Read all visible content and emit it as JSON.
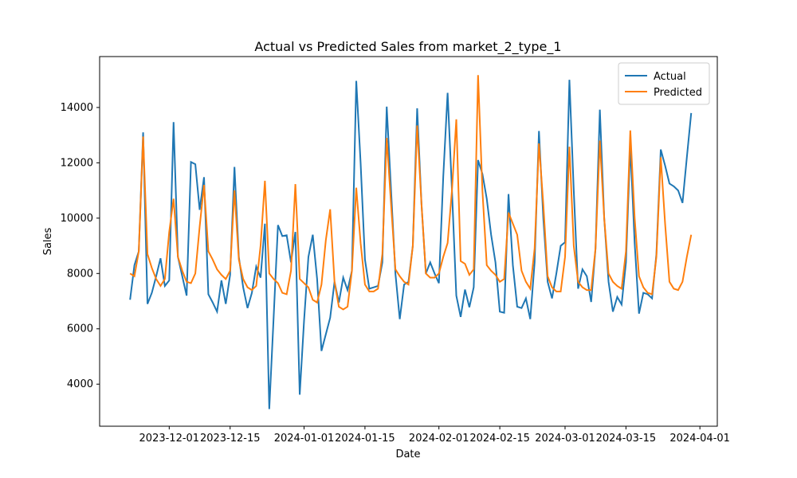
{
  "chart_data": {
    "type": "line",
    "title": "Actual vs Predicted Sales from market_2_type_1",
    "xlabel": "Date",
    "ylabel": "Sales",
    "x": [
      "2023-11-22",
      "2023-11-23",
      "2023-11-24",
      "2023-11-25",
      "2023-11-26",
      "2023-11-27",
      "2023-11-28",
      "2023-11-29",
      "2023-11-30",
      "2023-12-01",
      "2023-12-02",
      "2023-12-03",
      "2023-12-04",
      "2023-12-05",
      "2023-12-06",
      "2023-12-07",
      "2023-12-08",
      "2023-12-09",
      "2023-12-10",
      "2023-12-11",
      "2023-12-12",
      "2023-12-13",
      "2023-12-14",
      "2023-12-15",
      "2023-12-16",
      "2023-12-17",
      "2023-12-18",
      "2023-12-19",
      "2023-12-20",
      "2023-12-21",
      "2023-12-22",
      "2023-12-23",
      "2023-12-24",
      "2023-12-25",
      "2023-12-26",
      "2023-12-27",
      "2023-12-28",
      "2023-12-29",
      "2023-12-30",
      "2023-12-31",
      "2024-01-01",
      "2024-01-02",
      "2024-01-03",
      "2024-01-04",
      "2024-01-05",
      "2024-01-06",
      "2024-01-07",
      "2024-01-08",
      "2024-01-09",
      "2024-01-10",
      "2024-01-11",
      "2024-01-12",
      "2024-01-13",
      "2024-01-14",
      "2024-01-15",
      "2024-01-16",
      "2024-01-17",
      "2024-01-18",
      "2024-01-19",
      "2024-01-20",
      "2024-01-21",
      "2024-01-22",
      "2024-01-23",
      "2024-01-24",
      "2024-01-25",
      "2024-01-26",
      "2024-01-27",
      "2024-01-28",
      "2024-01-29",
      "2024-01-30",
      "2024-01-31",
      "2024-02-01",
      "2024-02-02",
      "2024-02-03",
      "2024-02-04",
      "2024-02-05",
      "2024-02-06",
      "2024-02-07",
      "2024-02-08",
      "2024-02-09",
      "2024-02-10",
      "2024-02-11",
      "2024-02-12",
      "2024-02-13",
      "2024-02-14",
      "2024-02-15",
      "2024-02-16",
      "2024-02-17",
      "2024-02-18",
      "2024-02-19",
      "2024-02-20",
      "2024-02-21",
      "2024-02-22",
      "2024-02-23",
      "2024-02-24",
      "2024-02-25",
      "2024-02-26",
      "2024-02-27",
      "2024-02-28",
      "2024-02-29",
      "2024-03-01",
      "2024-03-02",
      "2024-03-03",
      "2024-03-04",
      "2024-03-05",
      "2024-03-06",
      "2024-03-07",
      "2024-03-08",
      "2024-03-09",
      "2024-03-10",
      "2024-03-11",
      "2024-03-12",
      "2024-03-13",
      "2024-03-14",
      "2024-03-15",
      "2024-03-16",
      "2024-03-17",
      "2024-03-18",
      "2024-03-19",
      "2024-03-20",
      "2024-03-21",
      "2024-03-22",
      "2024-03-23",
      "2024-03-24",
      "2024-03-25",
      "2024-03-26",
      "2024-03-27",
      "2024-03-28",
      "2024-03-29",
      "2024-03-30"
    ],
    "series": [
      {
        "name": "Actual",
        "color": "#1f77b4",
        "values": [
          7050,
          8300,
          8800,
          13100,
          6900,
          7300,
          7900,
          8550,
          7550,
          7750,
          13470,
          8600,
          7900,
          7200,
          12030,
          11950,
          10300,
          11480,
          7250,
          6950,
          6620,
          7750,
          6900,
          7950,
          11850,
          8600,
          7500,
          6750,
          7300,
          8250,
          7850,
          9800,
          3100,
          6400,
          9750,
          9350,
          9380,
          8400,
          9500,
          3620,
          6300,
          8600,
          9400,
          7800,
          5200,
          5800,
          6400,
          7700,
          6950,
          7850,
          7400,
          8100,
          14960,
          12000,
          8500,
          7450,
          7500,
          7550,
          8400,
          14030,
          11000,
          8000,
          6350,
          7600,
          7700,
          9000,
          13970,
          10500,
          8000,
          8400,
          8000,
          7650,
          11500,
          14530,
          11000,
          7200,
          6430,
          7420,
          6780,
          7500,
          12100,
          11600,
          10700,
          9400,
          8400,
          6620,
          6580,
          10870,
          8300,
          6800,
          6750,
          7100,
          6350,
          8400,
          13150,
          10000,
          7700,
          7100,
          8000,
          9000,
          9130,
          15000,
          11000,
          7450,
          8150,
          7900,
          6970,
          8900,
          13920,
          10000,
          7700,
          6620,
          7150,
          6880,
          8400,
          12620,
          9100,
          6550,
          7300,
          7250,
          7100,
          8700,
          12480,
          11900,
          11250,
          11150,
          11000,
          10550,
          12200,
          13800
        ]
      },
      {
        "name": "Predicted",
        "color": "#ff7f0e",
        "values": [
          8000,
          7900,
          8800,
          12950,
          8700,
          8200,
          7800,
          7550,
          7800,
          9500,
          10700,
          8600,
          8100,
          7700,
          7650,
          8000,
          9700,
          11200,
          8800,
          8500,
          8150,
          7950,
          7800,
          8100,
          11000,
          8500,
          7800,
          7500,
          7400,
          7550,
          9000,
          11350,
          8000,
          7800,
          7650,
          7300,
          7250,
          8100,
          11230,
          7800,
          7650,
          7500,
          7050,
          6950,
          7600,
          9200,
          10320,
          7700,
          6800,
          6700,
          6800,
          8100,
          11100,
          9100,
          7600,
          7350,
          7350,
          7450,
          8700,
          12900,
          10500,
          8150,
          7900,
          7700,
          7600,
          9000,
          13350,
          10500,
          8000,
          7850,
          7850,
          8000,
          8600,
          9100,
          11000,
          13570,
          8450,
          8350,
          7950,
          8150,
          15170,
          11000,
          8300,
          8100,
          7950,
          7700,
          7800,
          10200,
          9800,
          9400,
          8100,
          7700,
          7450,
          8900,
          12700,
          10500,
          7900,
          7500,
          7350,
          7350,
          8600,
          12580,
          9000,
          7700,
          7500,
          7400,
          7400,
          8900,
          12800,
          10000,
          8000,
          7700,
          7550,
          7450,
          8800,
          13170,
          10000,
          7900,
          7500,
          7300,
          7250,
          8600,
          12200,
          9800,
          7700,
          7450,
          7400,
          7700,
          8600,
          9400
        ]
      }
    ],
    "xlim": [
      "2023-11-15",
      "2024-04-05"
    ],
    "xticks": [
      "2023-12-01",
      "2023-12-15",
      "2024-01-01",
      "2024-01-15",
      "2024-02-01",
      "2024-02-15",
      "2024-03-01",
      "2024-03-15",
      "2024-04-01"
    ],
    "ylim": [
      2480,
      15840
    ],
    "yticks": [
      4000,
      6000,
      8000,
      10000,
      12000,
      14000
    ],
    "grid": false,
    "legend": "upper right"
  }
}
